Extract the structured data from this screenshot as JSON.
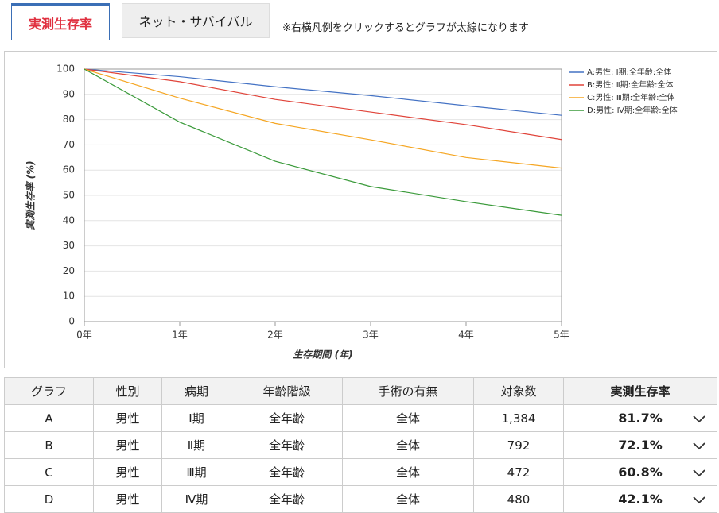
{
  "tabs": [
    "実測生存率",
    "ネット・サバイバル"
  ],
  "note": "※右横凡例をクリックするとグラフが太線になります",
  "chart_data": {
    "type": "line",
    "x_label": "生存期間 (年)",
    "y_label": "実測生存率 (%)",
    "categories": [
      "0年",
      "1年",
      "2年",
      "3年",
      "4年",
      "5年"
    ],
    "ylim": [
      0,
      100
    ],
    "yticks": [
      0,
      10,
      20,
      30,
      40,
      50,
      60,
      70,
      80,
      90,
      100
    ],
    "legend": "upper-right",
    "series": [
      {
        "name": "A:男性: Ⅰ期:全年齢:全体",
        "color": "#4472c4",
        "values": [
          100,
          97,
          93,
          89.5,
          85.5,
          81.7
        ]
      },
      {
        "name": "B:男性: Ⅱ期:全年齢:全体",
        "color": "#e0443a",
        "values": [
          100,
          95,
          88,
          83,
          78,
          72.1
        ]
      },
      {
        "name": "C:男性: Ⅲ期:全年齢:全体",
        "color": "#f5a623",
        "values": [
          100,
          88.5,
          78.5,
          72,
          65,
          60.8
        ]
      },
      {
        "name": "D:男性: Ⅳ期:全年齢:全体",
        "color": "#3a9a3a",
        "values": [
          100,
          79,
          63.5,
          53.5,
          47.5,
          42.1
        ]
      }
    ]
  },
  "table": {
    "header": [
      "グラフ",
      "性別",
      "病期",
      "年齢階級",
      "手術の有無",
      "対象数",
      "実測生存率"
    ],
    "rows": [
      [
        "A",
        "男性",
        "Ⅰ期",
        "全年齢",
        "全体",
        "1,384",
        "81.7%"
      ],
      [
        "B",
        "男性",
        "Ⅱ期",
        "全年齢",
        "全体",
        "792",
        "72.1%"
      ],
      [
        "C",
        "男性",
        "Ⅲ期",
        "全年齢",
        "全体",
        "472",
        "60.8%"
      ],
      [
        "D",
        "男性",
        "Ⅳ期",
        "全年齢",
        "全体",
        "480",
        "42.1%"
      ]
    ]
  }
}
